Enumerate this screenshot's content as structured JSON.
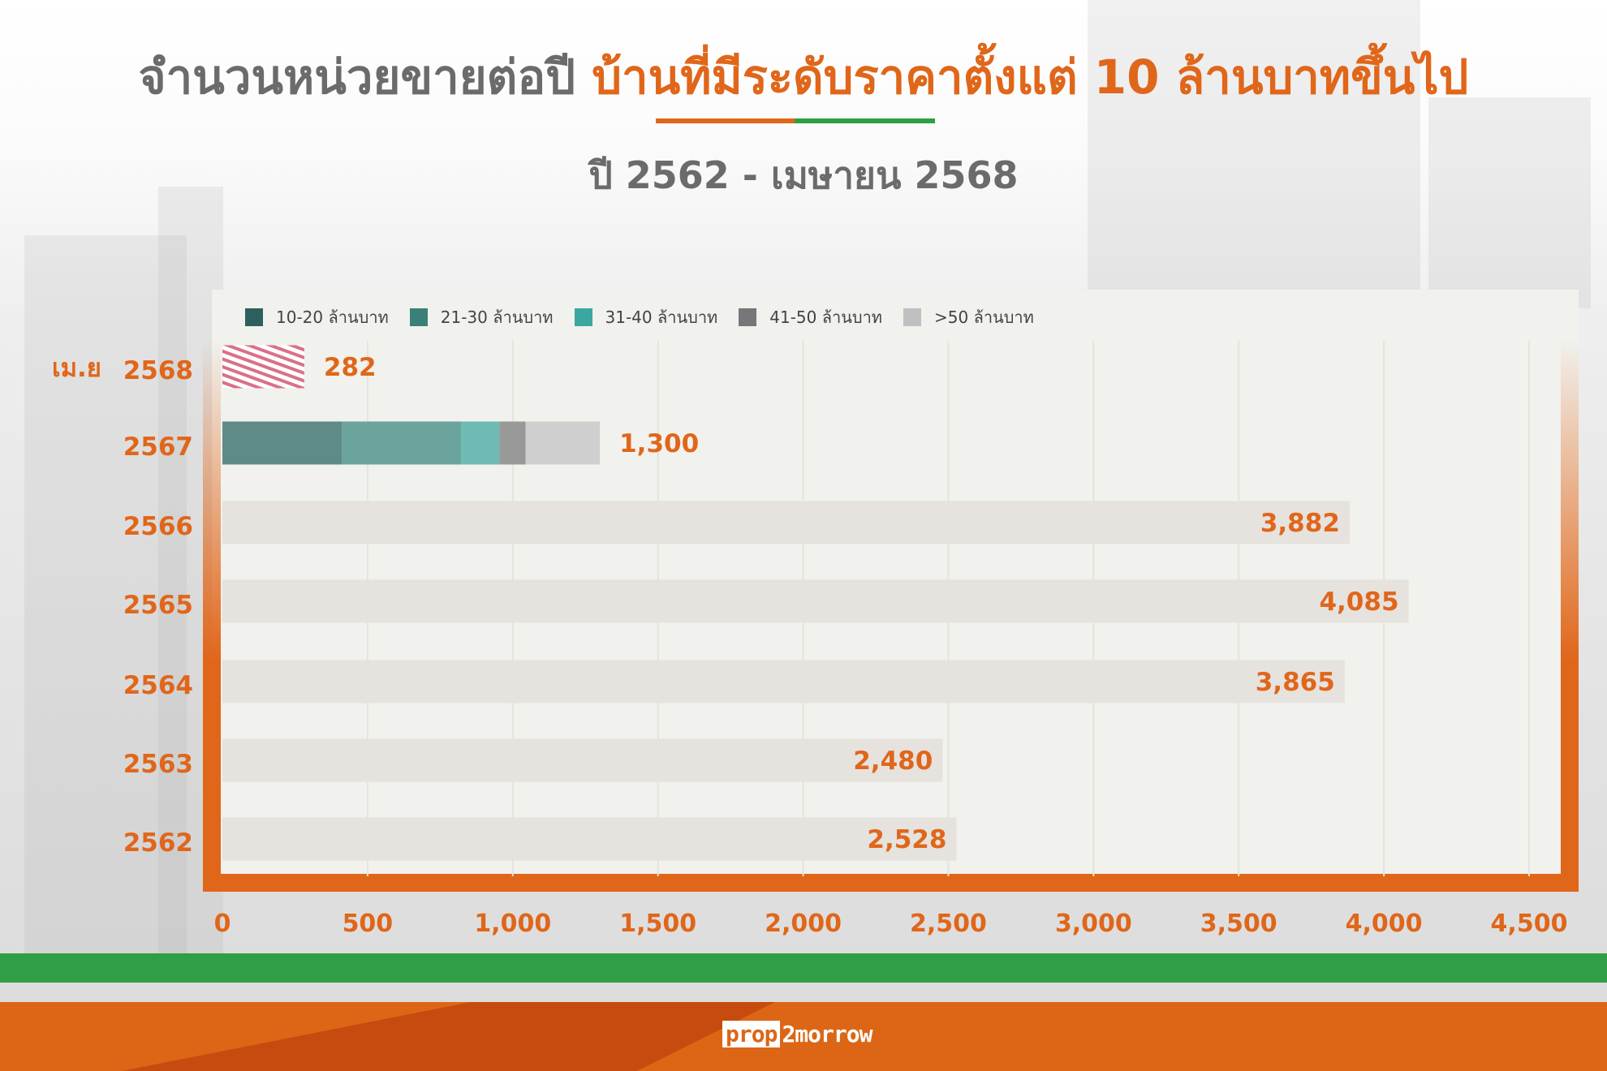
{
  "header": {
    "title_gray": "จำนวนหน่วยขายต่อปี",
    "title_orange": "บ้านที่มีระดับราคาตั้งแต่ 10 ล้านบาทขึ้นไป",
    "subtitle": "ปี 2562 - เมษายน 2568"
  },
  "colors": {
    "orange": "#e0661a",
    "green": "#2f9e46",
    "gray": "#6b6b6b"
  },
  "chart_data": {
    "type": "bar",
    "orientation": "horizontal",
    "stacked": true,
    "title": "จำนวนหน่วยขายต่อปี บ้านที่มีระดับราคาตั้งแต่ 10 ล้านบาทขึ้นไป",
    "subtitle": "ปี 2562 - เมษายน 2568",
    "categories": [
      "เม.ย 2568",
      "2567",
      "2566",
      "2565",
      "2564",
      "2563",
      "2562"
    ],
    "category_prefix": [
      "เม.ย",
      "",
      "",
      "",
      "",
      "",
      ""
    ],
    "category_year": [
      "2568",
      "2567",
      "2566",
      "2565",
      "2564",
      "2563",
      "2562"
    ],
    "totals": [
      282,
      1300,
      3882,
      4085,
      3865,
      2480,
      2528
    ],
    "total_labels": [
      "282",
      "1,300",
      "3,882",
      "4,085",
      "3,865",
      "2,480",
      "2,528"
    ],
    "legend": [
      {
        "name": "10-20 ล้านบาท",
        "color": "#2f5f5c",
        "bar_color": "#5f8b87"
      },
      {
        "name": "21-30 ล้านบาท",
        "color": "#3a8078",
        "bar_color": "#6aa49d"
      },
      {
        "name": "31-40 ล้านบาท",
        "color": "#3aa8a0",
        "bar_color": "#6fbab2"
      },
      {
        "name": "41-50 ล้านบาท",
        "color": "#77777a",
        "bar_color": "#999999"
      },
      {
        "name": ">50 ล้านบาท",
        "color": "#c0c0c2",
        "bar_color": "#cfcfcf"
      }
    ],
    "breakdown_2567": [
      412,
      410,
      132,
      90,
      256
    ],
    "xlim": [
      0,
      4500
    ],
    "xticks": [
      0,
      500,
      1000,
      1500,
      2000,
      2500,
      3000,
      3500,
      4000,
      4500
    ],
    "xtick_labels": [
      "0",
      "500",
      "1,000",
      "1,500",
      "2,000",
      "2,500",
      "3,000",
      "3,500",
      "4,000",
      "4,500"
    ],
    "grid": true,
    "legend_position": "top"
  },
  "footer": {
    "logo_left": "prop",
    "logo_right": "2morrow"
  }
}
